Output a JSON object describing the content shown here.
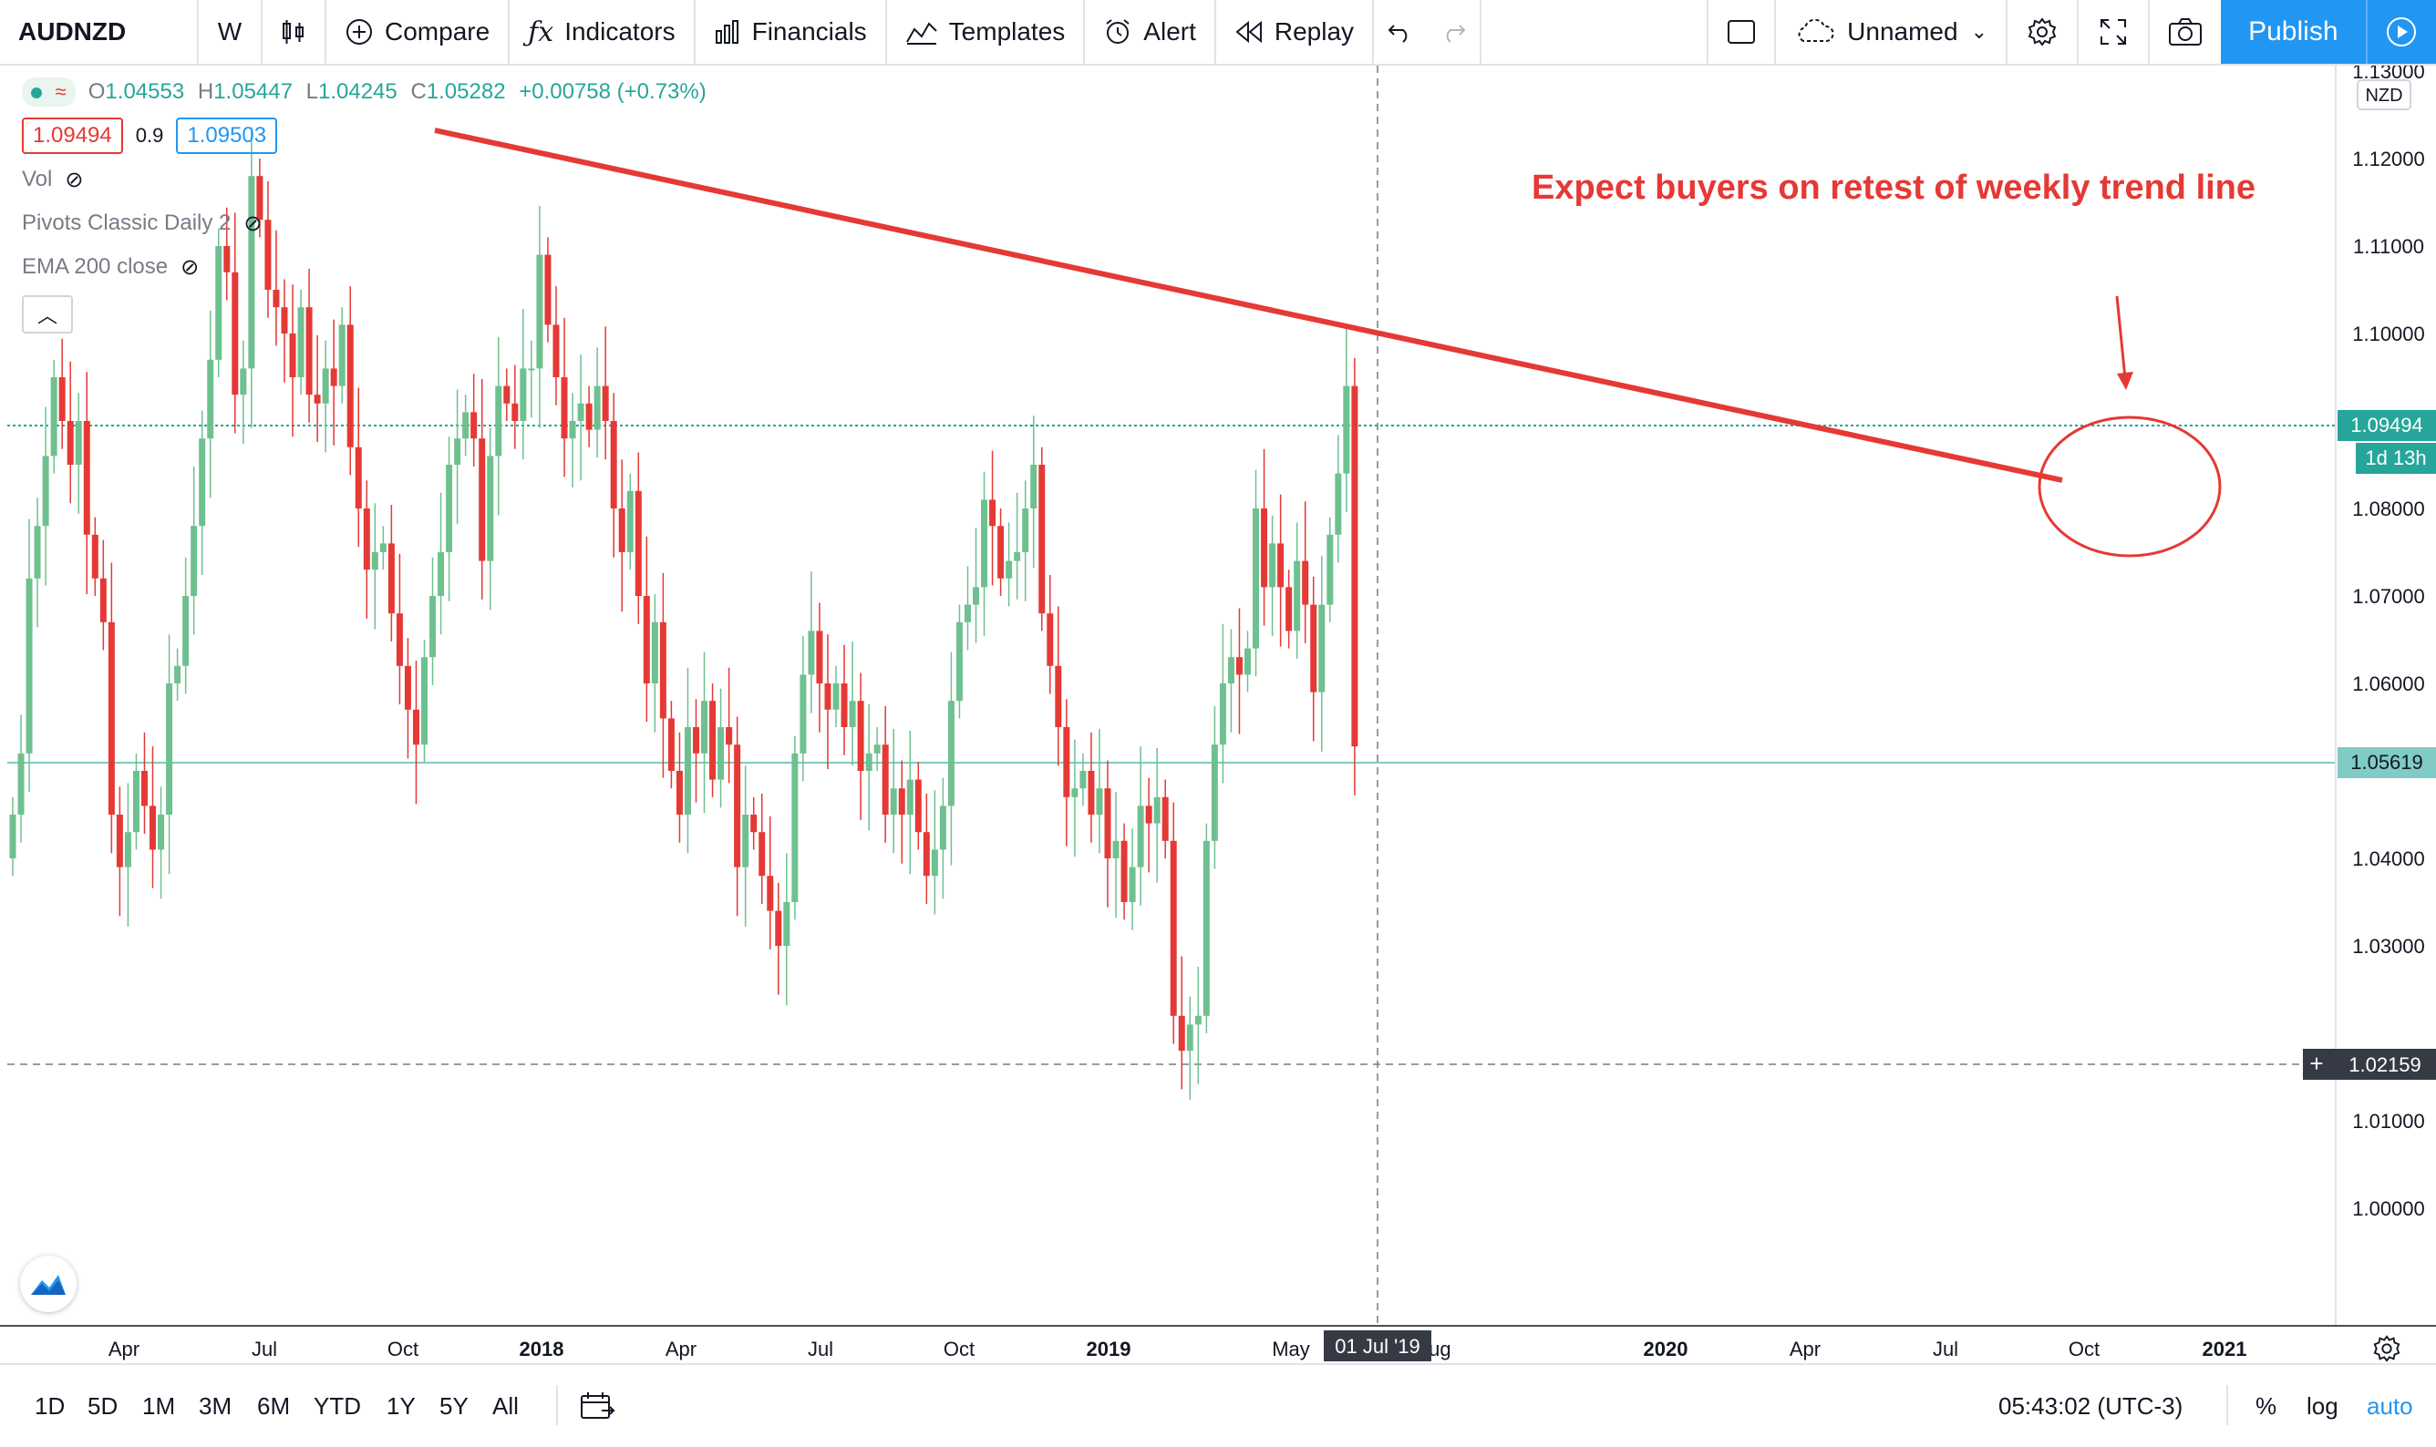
{
  "toolbar": {
    "symbol": "AUDNZD",
    "interval": "W",
    "compare": "Compare",
    "indicators": "Indicators",
    "financials": "Financials",
    "templates": "Templates",
    "alert": "Alert",
    "replay": "Replay",
    "layout_name": "Unnamed",
    "publish": "Publish"
  },
  "legend": {
    "ohlc": {
      "o_label": "O",
      "o": "1.04553",
      "h_label": "H",
      "h": "1.05447",
      "l_label": "L",
      "l": "1.04245",
      "c_label": "C",
      "c": "1.05282",
      "change": "+0.00758 (+0.73%)"
    },
    "sell_price": "1.09494",
    "spread": "0.9",
    "buy_price": "1.09503",
    "indicators": [
      "Vol",
      "Pivots Classic Daily 2",
      "EMA 200 close"
    ]
  },
  "annotation": {
    "text": "Expect buyers on retest of weekly trend line"
  },
  "price_axis": {
    "currency": "NZD",
    "ticks": [
      "1.13000",
      "1.12000",
      "1.11000",
      "1.10000",
      "1.08000",
      "1.07000",
      "1.06000",
      "1.05000",
      "1.04000",
      "1.03000",
      "1.01000",
      "1.00000"
    ],
    "last_price_label": "1.09494",
    "countdown_label": "1d 13h",
    "level_label": "1.05619",
    "crosshair_label": "1.02159"
  },
  "time_axis": {
    "ticks": [
      "Apr",
      "Jul",
      "Oct",
      "2018",
      "Apr",
      "Jul",
      "Oct",
      "2019",
      "May",
      "Aug",
      "2020",
      "Apr",
      "Jul",
      "Oct",
      "2021"
    ],
    "crosshair_label": "01 Jul '19"
  },
  "bottom_bar": {
    "ranges": [
      "1D",
      "5D",
      "1M",
      "3M",
      "6M",
      "YTD",
      "1Y",
      "5Y",
      "All"
    ],
    "clock": "05:43:02 (UTC-3)",
    "percent": "%",
    "log": "log",
    "auto": "auto"
  },
  "colors": {
    "up": "#26a69a",
    "up_body": "#6fc08f",
    "down": "#e53935",
    "trendline": "#e53935",
    "accent": "#2196f3",
    "level_line": "#80cbc4"
  },
  "chart_data": {
    "type": "candlestick",
    "symbol": "AUDNZD",
    "interval": "W",
    "ylim": [
      0.995,
      1.132
    ],
    "trendline": {
      "from": {
        "date": "2017-10-23",
        "price": 1.1295
      },
      "to": {
        "date": "2020-09-14",
        "price": 1.0885
      }
    },
    "horizontal_levels": [
      1.09494,
      1.05619,
      1.02159
    ],
    "closes": [
      1.045,
      1.052,
      1.072,
      1.078,
      1.086,
      1.095,
      1.09,
      1.085,
      1.09,
      1.077,
      1.072,
      1.067,
      1.045,
      1.039,
      1.043,
      1.05,
      1.046,
      1.041,
      1.045,
      1.06,
      1.062,
      1.07,
      1.078,
      1.088,
      1.097,
      1.11,
      1.107,
      1.093,
      1.096,
      1.118,
      1.113,
      1.105,
      1.103,
      1.1,
      1.095,
      1.103,
      1.093,
      1.092,
      1.096,
      1.094,
      1.101,
      1.087,
      1.08,
      1.073,
      1.075,
      1.076,
      1.068,
      1.062,
      1.057,
      1.053,
      1.063,
      1.07,
      1.075,
      1.085,
      1.088,
      1.091,
      1.088,
      1.074,
      1.086,
      1.094,
      1.092,
      1.09,
      1.096,
      1.096,
      1.109,
      1.101,
      1.095,
      1.088,
      1.09,
      1.092,
      1.089,
      1.094,
      1.09,
      1.08,
      1.075,
      1.082,
      1.07,
      1.06,
      1.067,
      1.056,
      1.05,
      1.045,
      1.055,
      1.052,
      1.058,
      1.049,
      1.055,
      1.053,
      1.039,
      1.045,
      1.043,
      1.038,
      1.034,
      1.03,
      1.035,
      1.052,
      1.061,
      1.066,
      1.06,
      1.057,
      1.06,
      1.055,
      1.058,
      1.05,
      1.052,
      1.053,
      1.045,
      1.048,
      1.045,
      1.049,
      1.043,
      1.038,
      1.041,
      1.046,
      1.058,
      1.067,
      1.069,
      1.071,
      1.081,
      1.078,
      1.072,
      1.074,
      1.075,
      1.08,
      1.085,
      1.068,
      1.062,
      1.055,
      1.047,
      1.048,
      1.05,
      1.045,
      1.048,
      1.04,
      1.042,
      1.035,
      1.039,
      1.046,
      1.044,
      1.047,
      1.042,
      1.022,
      1.018,
      1.021,
      1.022,
      1.042,
      1.053,
      1.06,
      1.063,
      1.061,
      1.064,
      1.08,
      1.071,
      1.076,
      1.071,
      1.066,
      1.074,
      1.069,
      1.059,
      1.069,
      1.077,
      1.084,
      1.094,
      1.0528
    ]
  }
}
